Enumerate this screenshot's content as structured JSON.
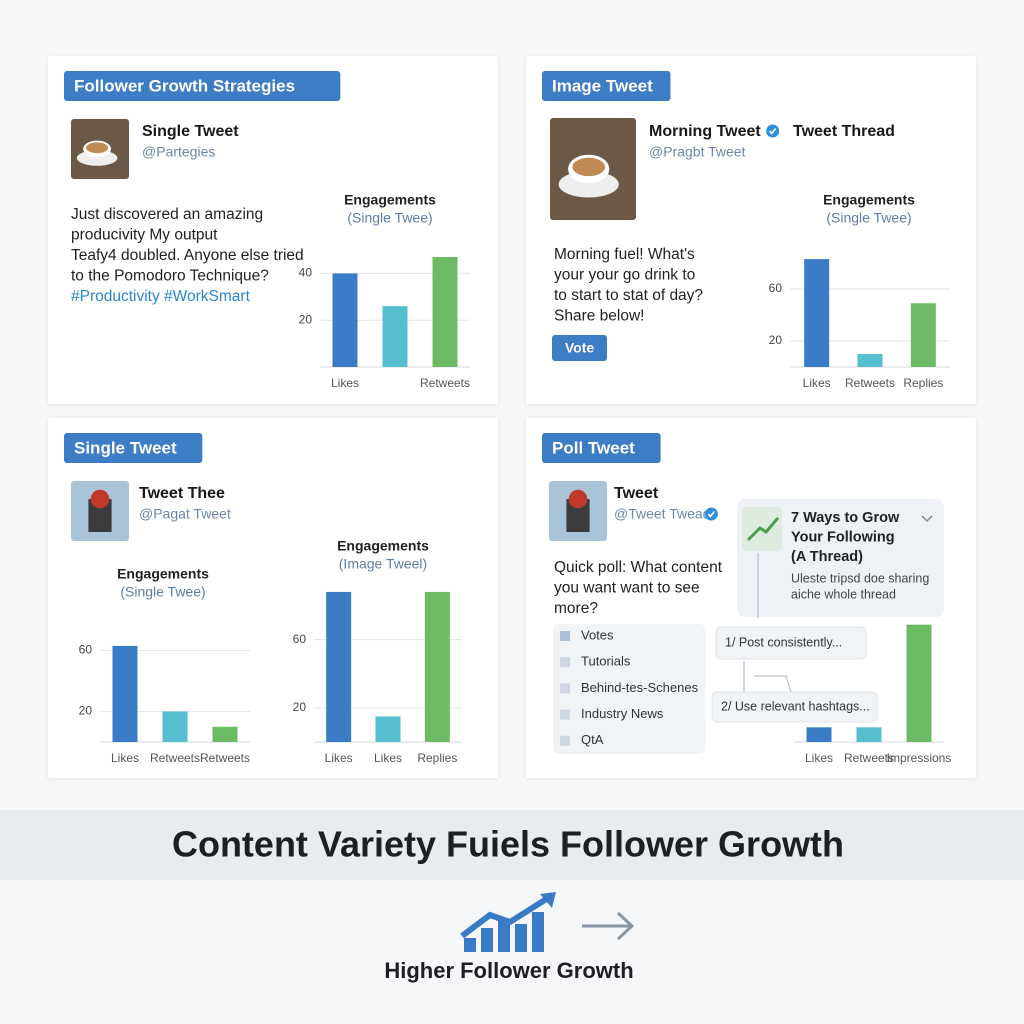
{
  "panels": [
    {
      "tag": "Follower Growth Strategies",
      "name": "Single Tweet",
      "handle": "@Partegies",
      "text": [
        "Just discovered an amazing",
        "producivity My output",
        "Teafy4 doubled. Anyone else tried",
        "to the Pomodoro Technique?"
      ],
      "hashtags": "#Productivity #WorkSmart",
      "charts": [
        {
          "type": "bar",
          "title": "Engagements",
          "subtitle": "(Single Twee)",
          "categories": [
            "Likes",
            null,
            "Retweets"
          ],
          "values": [
            40,
            26,
            47
          ],
          "colors": [
            "#3b7cc6",
            "#55bfd0",
            "#6cbb64"
          ],
          "ylim": [
            0,
            50
          ],
          "yticks": [
            20,
            40
          ],
          "grid": true
        }
      ]
    },
    {
      "tag": "Image Tweet",
      "name": "Morning Tweet",
      "handle": "@Pragbt Tweet",
      "extra": "Tweet Thread",
      "text": [
        "Morning fuel! What's",
        "your your go drink to",
        "to start to stat of day?",
        "Share below!"
      ],
      "button": "Vote",
      "charts": [
        {
          "type": "bar",
          "title": "Engagements",
          "subtitle": "(Single Twee)",
          "categories": [
            "Likes",
            "Retweets",
            "Replies"
          ],
          "values": [
            83,
            10,
            49
          ],
          "colors": [
            "#3b7cc6",
            "#55bfd0",
            "#6cbb64"
          ],
          "ylim": [
            0,
            90
          ],
          "yticks": [
            20,
            60
          ],
          "grid": true
        }
      ]
    },
    {
      "tag": "Single Tweet",
      "name": "Tweet Thee",
      "handle": "@Pagat Tweet",
      "charts": [
        {
          "type": "bar",
          "title": "Engagements",
          "subtitle": "(Single Twee)",
          "categories": [
            "Likes",
            "Retweets",
            "Retweets"
          ],
          "values": [
            63,
            20,
            10
          ],
          "colors": [
            "#3b7cc6",
            "#55bfd0",
            "#6cbb64"
          ],
          "ylim": [
            0,
            80
          ],
          "yticks": [
            20,
            60
          ],
          "grid": true
        },
        {
          "type": "bar",
          "title": "Engagements",
          "subtitle": "(Image Tweel)",
          "categories": [
            "Likes",
            "Likes",
            "Replies"
          ],
          "values": [
            88,
            15,
            88
          ],
          "colors": [
            "#3b7cc6",
            "#55bfd0",
            "#6cbb64"
          ],
          "ylim": [
            0,
            95
          ],
          "yticks": [
            20,
            60
          ],
          "grid": true
        }
      ]
    },
    {
      "tag": "Poll Tweet",
      "name": "Tweet",
      "handle": "@Tweet Twead",
      "text": [
        "Quick poll: What content",
        "you want want to see",
        "more?"
      ],
      "poll_options": [
        "Votes",
        "Tutorials",
        "Behind-tes-Schenes",
        "Industry News",
        "QtA"
      ],
      "thread_title": [
        "7 Ways to Grow",
        "Your Following",
        "(A Thread)"
      ],
      "thread_note": [
        "Uleste tripsd doe sharing",
        "aiche whole thread"
      ],
      "thread_items": [
        "1/ Post consistently...",
        "2/ Use relevant hashtags..."
      ],
      "charts": [
        {
          "type": "bar",
          "categories": [
            "Likes",
            "Retweets",
            "Impressions"
          ],
          "values": [
            10,
            10,
            80
          ],
          "colors": [
            "#3b7cc6",
            "#55bfd0",
            "#6cbb64"
          ],
          "ylim": [
            0,
            90
          ],
          "grid": false
        }
      ]
    }
  ],
  "banner": "Content Variety Fuiels Follower Growth",
  "footer": "Higher Follower Growth"
}
